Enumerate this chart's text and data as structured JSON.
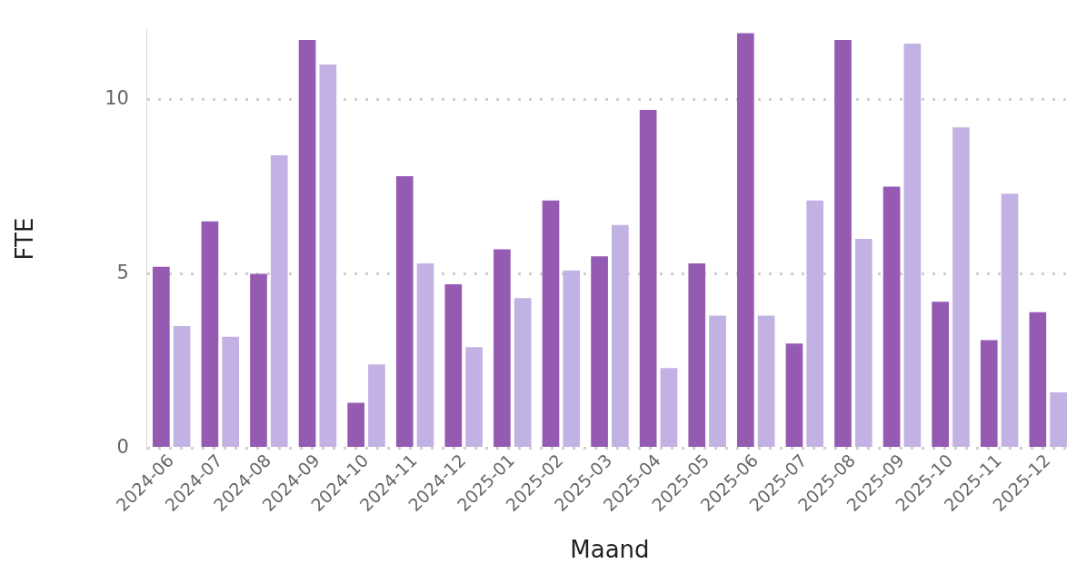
{
  "chart_data": {
    "type": "bar",
    "xlabel": "Maand",
    "ylabel": "FTE",
    "categories": [
      "2024-06",
      "2024-07",
      "2024-08",
      "2024-09",
      "2024-10",
      "2024-11",
      "2024-12",
      "2025-01",
      "2025-02",
      "2025-03",
      "2025-04",
      "2025-05",
      "2025-06",
      "2025-07",
      "2025-08",
      "2025-09",
      "2025-10",
      "2025-11",
      "2025-12"
    ],
    "series": [
      {
        "color": "#955ab2",
        "values": [
          5.2,
          6.5,
          5.0,
          11.7,
          1.3,
          7.8,
          4.7,
          5.7,
          7.1,
          5.5,
          9.7,
          5.3,
          11.9,
          3.0,
          11.7,
          7.5,
          4.2,
          3.1,
          3.9
        ]
      },
      {
        "color": "#c1b2e3",
        "values": [
          3.5,
          3.2,
          8.4,
          11.0,
          2.4,
          5.3,
          2.9,
          4.3,
          5.1,
          6.4,
          2.3,
          3.8,
          3.8,
          7.1,
          6.0,
          11.6,
          9.2,
          7.3,
          1.6
        ]
      }
    ],
    "ylim": [
      0,
      12
    ],
    "yticks": [
      0,
      5,
      10
    ],
    "grid": "y",
    "legend": false
  }
}
